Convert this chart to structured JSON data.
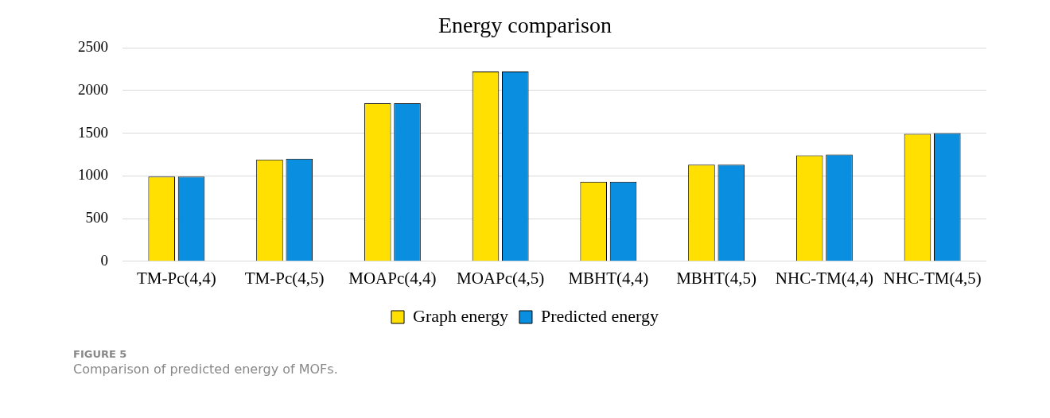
{
  "chart_data": {
    "type": "bar",
    "title": "Energy comparison",
    "categories": [
      "TM-Pc(4,4)",
      "TM-Pc(4,5)",
      "MOAPc(4,4)",
      "MOAPc(4,5)",
      "MBHT(4,4)",
      "MBHT(4,5)",
      "NHC-TM(4,4)",
      "NHC-TM(4,5)"
    ],
    "series": [
      {
        "name": "Graph energy",
        "color": "#ffe000",
        "values": [
          990,
          1190,
          1850,
          2220,
          930,
          1130,
          1240,
          1490
        ]
      },
      {
        "name": "Predicted energy",
        "color": "#0a8fe0",
        "values": [
          990,
          1200,
          1850,
          2220,
          930,
          1130,
          1250,
          1500
        ]
      }
    ],
    "ylim": [
      0,
      2500
    ],
    "yticks": [
      0,
      500,
      1000,
      1500,
      2000,
      2500
    ],
    "grid": "y",
    "legend": "bottom",
    "annotations": [
      "FIGURE 5",
      "Comparison of predicted energy of MOFs."
    ]
  }
}
